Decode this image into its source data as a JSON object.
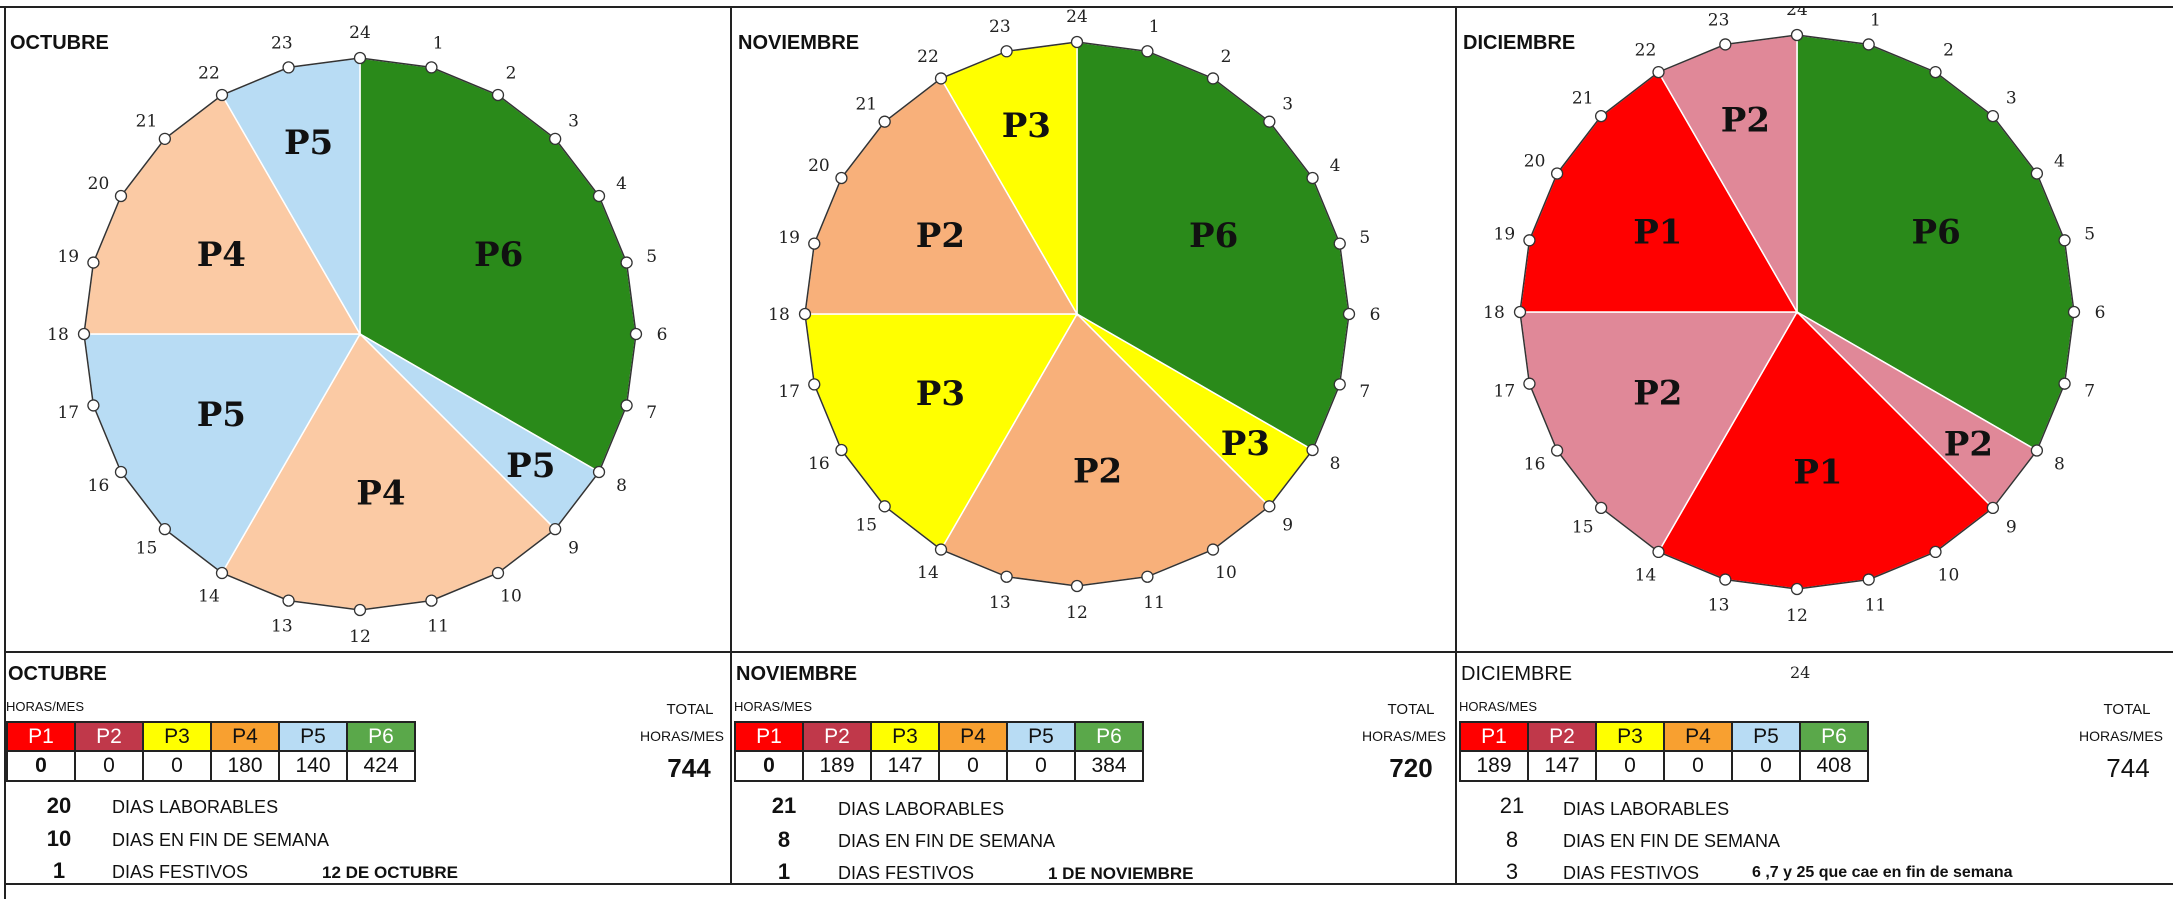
{
  "colors": {
    "P1": "#ff0000",
    "P2_dic": "#e08898",
    "P2_nov": "#f8b07a",
    "P3": "#ffff00",
    "P4": "#fbcaa4",
    "P5": "#b8dcf4",
    "P6": "#2a8a1a",
    "hdr_P1": "#ff0000",
    "hdr_P2": "#c0384a",
    "hdr_P3": "#ffff00",
    "hdr_P4": "#f8a030",
    "hdr_P5": "#b8dcf4",
    "hdr_P6": "#5aa84a"
  },
  "hours": [
    "24",
    "1",
    "2",
    "3",
    "4",
    "5",
    "6",
    "7",
    "8",
    "9",
    "10",
    "11",
    "12",
    "13",
    "14",
    "15",
    "16",
    "17",
    "18",
    "19",
    "20",
    "21",
    "22",
    "23"
  ],
  "months": [
    {
      "title": "OCTUBRE",
      "pie_segments": [
        {
          "label": "P6",
          "start": 0,
          "end": 8,
          "color": "P6"
        },
        {
          "label": "P5",
          "start": 8,
          "end": 9,
          "color": "P5"
        },
        {
          "label": "P4",
          "start": 9,
          "end": 14,
          "color": "P4"
        },
        {
          "label": "P5",
          "start": 14,
          "end": 18,
          "color": "P5"
        },
        {
          "label": "P4",
          "start": 18,
          "end": 22,
          "color": "P4"
        },
        {
          "label": "P5",
          "start": 22,
          "end": 24,
          "color": "P5"
        }
      ],
      "table_title": "OCTUBRE",
      "horas_mes": "HORAS/MES",
      "total_label": "TOTAL",
      "total_label2": "HORAS/MES",
      "headers": [
        "P1",
        "P2",
        "P3",
        "P4",
        "P5",
        "P6"
      ],
      "values": [
        "0",
        "0",
        "0",
        "180",
        "140",
        "424"
      ],
      "total": "744",
      "laborables_n": "20",
      "laborables": "DIAS LABORABLES",
      "finde_n": "10",
      "finde": "DIAS EN FIN DE SEMANA",
      "festivos_n": "1",
      "festivos": "DIAS FESTIVOS",
      "festivo_note": "12 DE OCTUBRE"
    },
    {
      "title": "NOVIEMBRE",
      "pie_segments": [
        {
          "label": "P6",
          "start": 0,
          "end": 8,
          "color": "P6"
        },
        {
          "label": "P3",
          "start": 8,
          "end": 9,
          "color": "P3"
        },
        {
          "label": "P2",
          "start": 9,
          "end": 14,
          "color": "P2_nov"
        },
        {
          "label": "P3",
          "start": 14,
          "end": 18,
          "color": "P3"
        },
        {
          "label": "P2",
          "start": 18,
          "end": 22,
          "color": "P2_nov"
        },
        {
          "label": "P3",
          "start": 22,
          "end": 24,
          "color": "P3"
        }
      ],
      "table_title": "NOVIEMBRE",
      "horas_mes": "HORAS/MES",
      "total_label": "TOTAL",
      "total_label2": "HORAS/MES",
      "headers": [
        "P1",
        "P2",
        "P3",
        "P4",
        "P5",
        "P6"
      ],
      "values": [
        "0",
        "189",
        "147",
        "0",
        "0",
        "384"
      ],
      "total": "720",
      "laborables_n": "21",
      "laborables": "DIAS LABORABLES",
      "finde_n": "8",
      "finde": "DIAS EN FIN DE SEMANA",
      "festivos_n": "1",
      "festivos": "DIAS FESTIVOS",
      "festivo_note": "1 DE NOVIEMBRE"
    },
    {
      "title": "DICIEMBRE",
      "pie_segments": [
        {
          "label": "P6",
          "start": 0,
          "end": 8,
          "color": "P6"
        },
        {
          "label": "P2",
          "start": 8,
          "end": 9,
          "color": "P2_dic"
        },
        {
          "label": "P1",
          "start": 9,
          "end": 14,
          "color": "P1"
        },
        {
          "label": "P2",
          "start": 14,
          "end": 18,
          "color": "P2_dic"
        },
        {
          "label": "P1",
          "start": 18,
          "end": 22,
          "color": "P1"
        },
        {
          "label": "P2",
          "start": 22,
          "end": 24,
          "color": "P2_dic"
        }
      ],
      "table_title": "DICIEMBRE",
      "table_extra": "24",
      "horas_mes": "HORAS/MES",
      "total_label": "TOTAL",
      "total_label2": "HORAS/MES",
      "headers": [
        "P1",
        "P2",
        "P3",
        "P4",
        "P5",
        "P6"
      ],
      "values": [
        "189",
        "147",
        "0",
        "0",
        "0",
        "408"
      ],
      "total": "744",
      "laborables_n": "21",
      "laborables": "DIAS LABORABLES",
      "finde_n": "8",
      "finde": "DIAS EN FIN DE SEMANA",
      "festivos_n": "3",
      "festivos": "DIAS FESTIVOS",
      "festivo_note": "6 ,7 y 25 que cae en fin de semana"
    }
  ]
}
